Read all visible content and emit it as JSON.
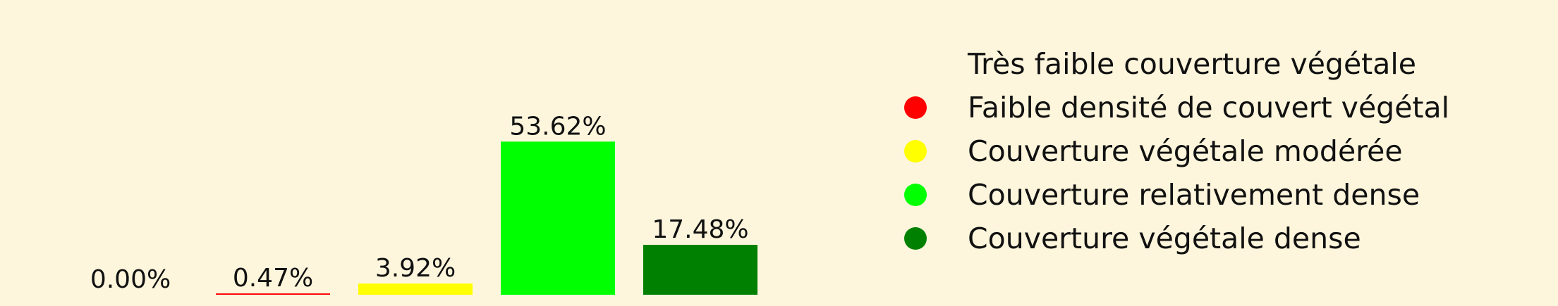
{
  "chart_data": {
    "type": "bar",
    "title": "",
    "xlabel": "",
    "ylabel": "",
    "ylim": [
      0,
      100
    ],
    "grid": false,
    "legend_placement": "right",
    "categories": [
      "Très faible couverture végétale",
      "Faible densité de couvert végétal",
      "Couverture végétale modérée",
      "Couverture relativement dense",
      "Couverture végétale dense"
    ],
    "values": [
      0.0,
      0.47,
      3.92,
      53.62,
      17.48
    ],
    "value_labels": [
      "0.00%",
      "0.47%",
      "3.92%",
      "53.62%",
      "17.48%"
    ],
    "colors": [
      "#fdf6dc",
      "#ff0000",
      "#ffff00",
      "#00ff00",
      "#008000"
    ]
  }
}
